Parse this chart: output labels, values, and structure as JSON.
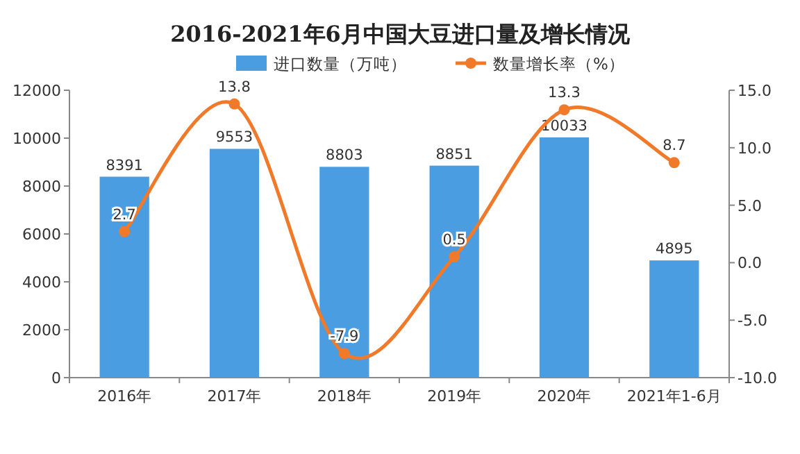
{
  "chart_data": {
    "type": "bar",
    "title": "2016-2021年6月中国大豆进口量及增长情况",
    "categories": [
      "2016年",
      "2017年",
      "2018年",
      "2019年",
      "2020年",
      "2021年1-6月"
    ],
    "series": [
      {
        "name": "进口数量（万吨）",
        "color": "#4a9de0",
        "values": [
          8391,
          9553,
          8803,
          8851,
          10033,
          4895
        ]
      },
      {
        "name": "数量增长率（%）",
        "type": "line",
        "axis": "y2",
        "color": "#f07a2a",
        "marker": "circle",
        "values": [
          2.7,
          13.8,
          -7.9,
          0.5,
          13.3,
          8.7
        ]
      }
    ],
    "ylim": [
      0,
      12000
    ],
    "yticks": [
      0,
      2000,
      4000,
      6000,
      8000,
      10000,
      12000
    ],
    "y2lim": [
      -10,
      15
    ],
    "y2ticks": [
      {
        "value": -10,
        "label": "-10.0"
      },
      {
        "value": -5,
        "label": "-5.0"
      },
      {
        "value": 0,
        "label": "0.0"
      },
      {
        "value": 5,
        "label": "5.0"
      },
      {
        "value": 10,
        "label": "10.0"
      },
      {
        "value": 15,
        "label": "15.0"
      }
    ],
    "data_labels": true,
    "legend": "top",
    "grid": false
  }
}
